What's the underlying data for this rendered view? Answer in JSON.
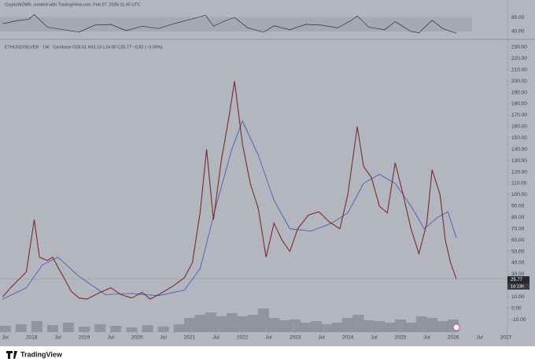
{
  "chart_data": {
    "type": "line",
    "watermark": "CryptoWZMR, created with TradingView.com, Feb 07, 2026 11:45 UTC",
    "title": "ETHUSD/SILVER · 1W · Coinbase  O28.01  H31.10  L24.00  C25.77  −0.82 (−3.09%)",
    "brand": "TradingView",
    "last_price": 25.77,
    "countdown": "1d 13h",
    "color": "#7a2b2b",
    "ma_color": "#3f51b5",
    "volume_color": "#8a8d94",
    "rsi_color": "#2f3136",
    "xlim": [
      2017.4,
      2027.03
    ],
    "xticks": [
      {
        "value": 2017.5,
        "label": "Jul"
      },
      {
        "value": 2018,
        "label": "2018"
      },
      {
        "value": 2018.5,
        "label": "Jul"
      },
      {
        "value": 2019,
        "label": "2019"
      },
      {
        "value": 2019.5,
        "label": "Jul"
      },
      {
        "value": 2020,
        "label": "2020"
      },
      {
        "value": 2020.5,
        "label": "Jul"
      },
      {
        "value": 2021,
        "label": "2021"
      },
      {
        "value": 2021.5,
        "label": "Jul"
      },
      {
        "value": 2022,
        "label": "2022"
      },
      {
        "value": 2022.5,
        "label": "Jul"
      },
      {
        "value": 2023,
        "label": "2023"
      },
      {
        "value": 2023.5,
        "label": "Jul"
      },
      {
        "value": 2024,
        "label": "2024"
      },
      {
        "value": 2024.5,
        "label": "Jul"
      },
      {
        "value": 2025,
        "label": "2025"
      },
      {
        "value": 2025.5,
        "label": "Jul"
      },
      {
        "value": 2026,
        "label": "2026"
      },
      {
        "value": 2026.5,
        "label": "Jul"
      },
      {
        "value": 2027,
        "label": "2027"
      }
    ],
    "ylim": [
      -12,
      232
    ],
    "yticks": [
      {
        "value": 230,
        "label": "230.00"
      },
      {
        "value": 220,
        "label": "220.00"
      },
      {
        "value": 210,
        "label": "210.00"
      },
      {
        "value": 200,
        "label": "200.00"
      },
      {
        "value": 190,
        "label": "190.00"
      },
      {
        "value": 180,
        "label": "180.00"
      },
      {
        "value": 170,
        "label": "170.00"
      },
      {
        "value": 160,
        "label": "160.00"
      },
      {
        "value": 150,
        "label": "150.00"
      },
      {
        "value": 140,
        "label": "140.00"
      },
      {
        "value": 130,
        "label": "130.00"
      },
      {
        "value": 120,
        "label": "120.00"
      },
      {
        "value": 110,
        "label": "110.00"
      },
      {
        "value": 100,
        "label": "100.00"
      },
      {
        "value": 90,
        "label": "90.00"
      },
      {
        "value": 80,
        "label": "80.00"
      },
      {
        "value": 70,
        "label": "70.00"
      },
      {
        "value": 60,
        "label": "60.00"
      },
      {
        "value": 50,
        "label": "50.00"
      },
      {
        "value": 40,
        "label": "40.00"
      },
      {
        "value": 30,
        "label": "30.00"
      },
      {
        "value": 20,
        "label": "20.00"
      },
      {
        "value": 10,
        "label": "10.00"
      },
      {
        "value": 0,
        "label": "0.00"
      },
      {
        "value": -10,
        "label": "-10.00"
      }
    ],
    "x": [
      2017.45,
      2017.6,
      2017.75,
      2017.9,
      2018.05,
      2018.15,
      2018.3,
      2018.4,
      2018.5,
      2018.6,
      2018.75,
      2018.9,
      2019.05,
      2019.3,
      2019.5,
      2019.7,
      2019.9,
      2020.1,
      2020.25,
      2020.45,
      2020.7,
      2020.9,
      2021.05,
      2021.2,
      2021.32,
      2021.45,
      2021.6,
      2021.75,
      2021.85,
      2022.0,
      2022.15,
      2022.3,
      2022.45,
      2022.6,
      2022.75,
      2022.9,
      2023.05,
      2023.25,
      2023.45,
      2023.65,
      2023.85,
      2024.0,
      2024.18,
      2024.3,
      2024.45,
      2024.6,
      2024.75,
      2024.9,
      2025.05,
      2025.2,
      2025.35,
      2025.5,
      2025.6,
      2025.75,
      2025.85,
      2025.95,
      2026.06
    ],
    "values": [
      10,
      18,
      25,
      32,
      78,
      45,
      42,
      45,
      36,
      28,
      15,
      9,
      8,
      14,
      18,
      12,
      9,
      14,
      8,
      13,
      20,
      27,
      40,
      85,
      140,
      78,
      130,
      170,
      200,
      145,
      110,
      88,
      45,
      75,
      60,
      50,
      70,
      82,
      85,
      76,
      70,
      100,
      160,
      125,
      115,
      90,
      84,
      128,
      100,
      70,
      48,
      75,
      122,
      100,
      60,
      40,
      25.77
    ],
    "ma_x": [
      2017.45,
      2017.9,
      2018.2,
      2018.5,
      2018.9,
      2019.4,
      2019.9,
      2020.4,
      2020.9,
      2021.2,
      2021.5,
      2021.8,
      2022.0,
      2022.3,
      2022.6,
      2022.9,
      2023.3,
      2023.7,
      2024.0,
      2024.3,
      2024.6,
      2024.9,
      2025.2,
      2025.45,
      2025.7,
      2025.9,
      2026.06
    ],
    "ma_values": [
      8,
      18,
      38,
      45,
      28,
      12,
      13,
      11,
      16,
      35,
      90,
      140,
      165,
      135,
      95,
      70,
      68,
      75,
      84,
      110,
      118,
      110,
      90,
      70,
      80,
      85,
      62
    ],
    "volume_x": [
      2017.5,
      2017.8,
      2018.1,
      2018.4,
      2018.7,
      2019.0,
      2019.3,
      2019.6,
      2019.9,
      2020.2,
      2020.5,
      2020.8,
      2021.0,
      2021.2,
      2021.4,
      2021.6,
      2021.8,
      2022.0,
      2022.2,
      2022.4,
      2022.6,
      2022.8,
      2023.0,
      2023.2,
      2023.4,
      2023.6,
      2023.8,
      2024.0,
      2024.2,
      2024.4,
      2024.6,
      2024.8,
      2025.0,
      2025.2,
      2025.4,
      2025.6,
      2025.8,
      2026.0
    ],
    "volume_values": [
      8,
      10,
      14,
      9,
      12,
      7,
      10,
      8,
      6,
      9,
      7,
      10,
      18,
      22,
      25,
      20,
      24,
      20,
      22,
      30,
      18,
      15,
      16,
      12,
      14,
      10,
      12,
      18,
      22,
      15,
      14,
      12,
      16,
      12,
      20,
      18,
      14,
      16
    ],
    "volume_max": 60,
    "rsi_ylim": [
      24,
      96
    ],
    "rsi_ticks": [
      {
        "value": 80,
        "label": "80.00"
      },
      {
        "value": 40,
        "label": "40.00"
      }
    ],
    "rsi_x": [
      2017.45,
      2017.7,
      2017.95,
      2018.05,
      2018.3,
      2018.6,
      2018.9,
      2019.2,
      2019.5,
      2019.8,
      2020.1,
      2020.4,
      2020.7,
      2021.0,
      2021.3,
      2021.45,
      2021.7,
      2021.85,
      2022.1,
      2022.4,
      2022.6,
      2022.9,
      2023.2,
      2023.5,
      2023.8,
      2024.05,
      2024.18,
      2024.4,
      2024.7,
      2024.9,
      2025.2,
      2025.35,
      2025.6,
      2025.8,
      2026.06
    ],
    "rsi_values": [
      62,
      70,
      75,
      88,
      52,
      45,
      38,
      58,
      60,
      42,
      55,
      48,
      62,
      74,
      86,
      55,
      72,
      80,
      50,
      38,
      56,
      45,
      60,
      58,
      50,
      70,
      84,
      52,
      45,
      68,
      40,
      36,
      72,
      48,
      35
    ]
  }
}
